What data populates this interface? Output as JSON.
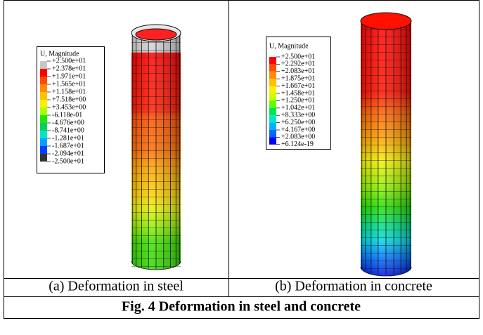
{
  "panels": [
    {
      "legend": {
        "title": "U, Magnitude",
        "labels": [
          "+2.500e+01",
          "+2.378e+01",
          "+1.971e+01",
          "+1.565e+01",
          "+1.158e+01",
          "+7.518e+00",
          "+3.453e+00",
          "-6.118e-01",
          "-4.676e+00",
          "-8.741e+00",
          "-1.281e+01",
          "-1.687e+01",
          "-2.094e+01",
          "-2.500e+01"
        ],
        "colors": [
          "#c8c8c8",
          "#ff0000",
          "#ff4a00",
          "#ff8c00",
          "#ffc000",
          "#ffee00",
          "#aaff00",
          "#22e600",
          "#00d060",
          "#00e6c8",
          "#00a0ff",
          "#0040ff",
          "#333333"
        ]
      },
      "caption": "(a) Deformation in steel"
    },
    {
      "legend": {
        "title": "U, Magnitude",
        "labels": [
          "+2.500e+01",
          "+2.292e+01",
          "+2.083e+01",
          "+1.875e+01",
          "+1.667e+01",
          "+1.458e+01",
          "+1.250e+01",
          "+1.042e+01",
          "+8.333e+00",
          "+6.250e+00",
          "+4.167e+00",
          "+2.083e+00",
          "+6.124e-19"
        ],
        "colors": [
          "#ff0000",
          "#ff4a00",
          "#ff8c00",
          "#ffc000",
          "#ffee00",
          "#c8ff00",
          "#5aff00",
          "#00e650",
          "#00e6c8",
          "#00b4ff",
          "#0064ff",
          "#0000ff"
        ]
      },
      "caption": "(b) Deformation in concrete"
    }
  ],
  "figure_caption": "Fig. 4 Deformation in steel and concrete"
}
